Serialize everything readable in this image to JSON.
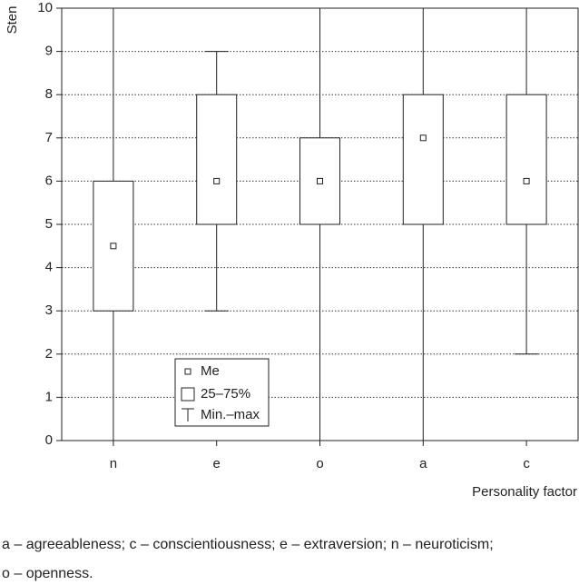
{
  "chart_data": {
    "type": "box",
    "y_label": "Sten",
    "x_label": "Personality factor",
    "categories": [
      "n",
      "e",
      "o",
      "a",
      "c"
    ],
    "boxes": [
      {
        "min": 0,
        "q1": 3,
        "median": 4.5,
        "q3": 6,
        "max": 10
      },
      {
        "min": 3,
        "q1": 5,
        "median": 6,
        "q3": 8,
        "max": 9
      },
      {
        "min": 0,
        "q1": 5,
        "median": 6,
        "q3": 7,
        "max": 10
      },
      {
        "min": 0,
        "q1": 5,
        "median": 7,
        "q3": 8,
        "max": 10
      },
      {
        "min": 2,
        "q1": 5,
        "median": 6,
        "q3": 8,
        "max": 10
      }
    ],
    "ylim": [
      0,
      10
    ],
    "yticks": [
      0,
      1,
      2,
      3,
      4,
      5,
      6,
      7,
      8,
      9,
      10
    ],
    "grid": true,
    "color": "#222222",
    "legend": {
      "median": "Me",
      "box": "25–75%",
      "whisker": "Min.–max"
    },
    "notes": [
      "a – agreeableness; c – conscientiousness; e – extraversion; n – neuroticism;",
      "o – openness."
    ]
  }
}
